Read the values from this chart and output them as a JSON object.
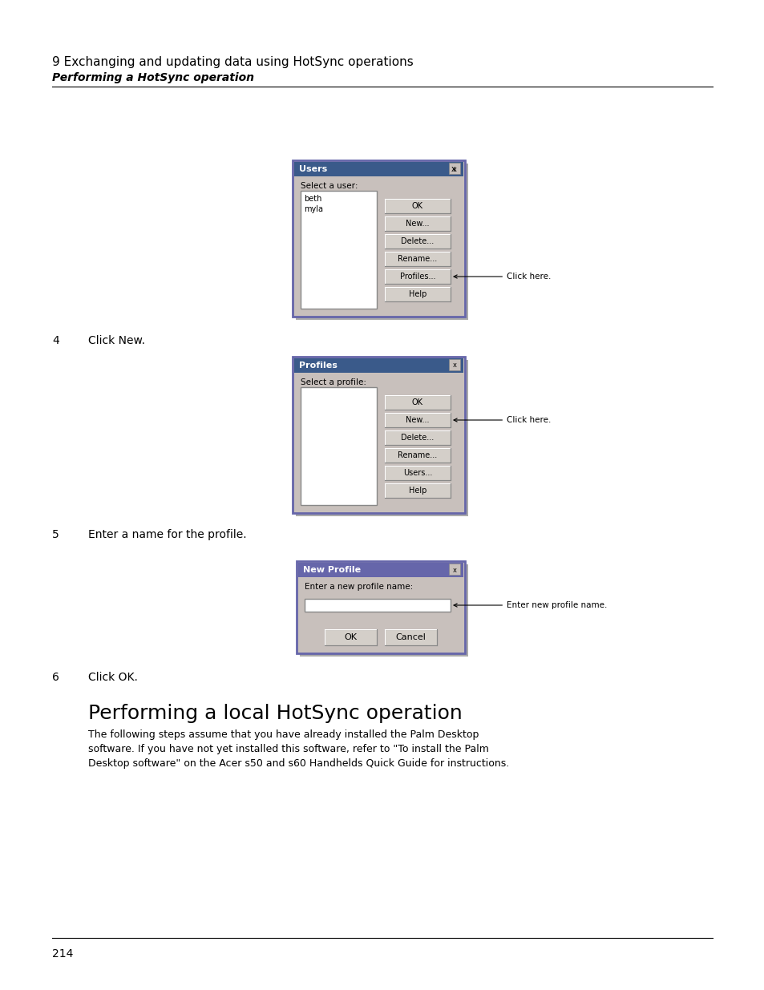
{
  "bg_color": "#ffffff",
  "header_title": "9 Exchanging and updating data using HotSync operations",
  "header_subtitle": "Performing a HotSync operation",
  "step4_label": "4",
  "step4_text": "Click New.",
  "step5_label": "5",
  "step5_text": "Enter a name for the profile.",
  "step6_label": "6",
  "step6_text": "Click OK.",
  "section_title": "Performing a local HotSync operation",
  "section_body": "The following steps assume that you have already installed the Palm Desktop\nsoftware. If you have not yet installed this software, refer to \"To install the Palm\nDesktop software\" on the Acer s50 and s60 Handhelds Quick Guide for instructions.",
  "page_number": "214",
  "dialog1": {
    "title": "Users",
    "title_bg": "#3a5a8a",
    "bg": "#c8c0bc",
    "label": "Select a user:",
    "list_items": [
      "beth",
      "myla"
    ],
    "buttons": [
      "OK",
      "New...",
      "Delete...",
      "Rename...",
      "Profiles...",
      "Help"
    ],
    "annotation": "Click here.",
    "annotated_button": "Profiles..."
  },
  "dialog2": {
    "title": "Profiles",
    "title_bg": "#3a5a8a",
    "bg": "#c8c0bc",
    "label": "Select a profile:",
    "buttons": [
      "OK",
      "New...",
      "Delete...",
      "Rename...",
      "Users...",
      "Help"
    ],
    "annotation": "Click here.",
    "annotated_button": "New..."
  },
  "dialog3": {
    "title": "New Profile",
    "title_bg": "#6666aa",
    "bg": "#c8c0bc",
    "label": "Enter a new profile name:",
    "buttons": [
      "OK",
      "Cancel"
    ],
    "annotation": "Enter new profile name.",
    "has_textfield": true
  }
}
